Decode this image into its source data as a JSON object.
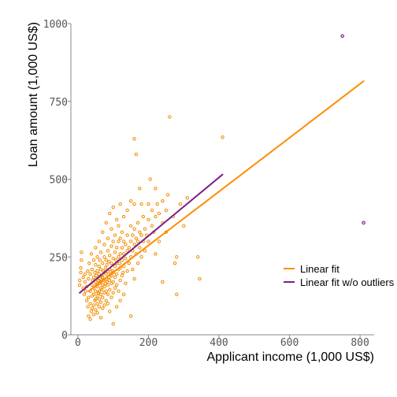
{
  "chart_data": {
    "type": "scatter",
    "title": "",
    "xlabel": "Applicant income (1,000 US$)",
    "ylabel": "Loan amount (1,000 US$)",
    "xlim": [
      -20,
      840
    ],
    "ylim": [
      0,
      1000
    ],
    "x_ticks": [
      0,
      200,
      400,
      600,
      800
    ],
    "y_ticks": [
      0,
      250,
      500,
      750,
      1000
    ],
    "grid": false,
    "legend_position": "right",
    "colors": {
      "points": "#f28c00",
      "outliers": "#7b1f8a",
      "fit": "#ff8c00",
      "fit_no_outliers": "#7b1f8a",
      "axis": "#888888"
    },
    "legend": [
      {
        "label": "Linear fit",
        "color": "#ff8c00"
      },
      {
        "label": "Linear fit w/o outliers",
        "color": "#7b1f8a"
      }
    ],
    "series": [
      {
        "name": "Linear fit",
        "kind": "line",
        "color": "#ff8c00",
        "x": [
          30,
          810
        ],
        "y": [
          140,
          815
        ]
      },
      {
        "name": "Linear fit w/o outliers",
        "kind": "line",
        "color": "#7b1f8a",
        "x": [
          5,
          410
        ],
        "y": [
          135,
          515
        ]
      }
    ],
    "outliers": [
      {
        "x": 750,
        "y": 960
      },
      {
        "x": 810,
        "y": 360
      }
    ],
    "points": [
      [
        5,
        160
      ],
      [
        5,
        175
      ],
      [
        8,
        200
      ],
      [
        8,
        215
      ],
      [
        10,
        240
      ],
      [
        10,
        265
      ],
      [
        15,
        150
      ],
      [
        15,
        185
      ],
      [
        18,
        130
      ],
      [
        20,
        170
      ],
      [
        20,
        195
      ],
      [
        22,
        140
      ],
      [
        25,
        110
      ],
      [
        25,
        155
      ],
      [
        28,
        90
      ],
      [
        28,
        205
      ],
      [
        30,
        60
      ],
      [
        30,
        120
      ],
      [
        30,
        180
      ],
      [
        32,
        230
      ],
      [
        35,
        50
      ],
      [
        35,
        100
      ],
      [
        35,
        140
      ],
      [
        35,
        195
      ],
      [
        38,
        75
      ],
      [
        38,
        260
      ],
      [
        40,
        85
      ],
      [
        40,
        125
      ],
      [
        40,
        160
      ],
      [
        40,
        210
      ],
      [
        42,
        175
      ],
      [
        45,
        65
      ],
      [
        45,
        95
      ],
      [
        45,
        130
      ],
      [
        45,
        150
      ],
      [
        45,
        185
      ],
      [
        45,
        240
      ],
      [
        48,
        110
      ],
      [
        48,
        200
      ],
      [
        50,
        80
      ],
      [
        50,
        115
      ],
      [
        50,
        140
      ],
      [
        50,
        170
      ],
      [
        50,
        225
      ],
      [
        50,
        280
      ],
      [
        52,
        160
      ],
      [
        52,
        190
      ],
      [
        55,
        70
      ],
      [
        55,
        100
      ],
      [
        55,
        125
      ],
      [
        55,
        155
      ],
      [
        55,
        205
      ],
      [
        55,
        250
      ],
      [
        58,
        135
      ],
      [
        58,
        175
      ],
      [
        60,
        90
      ],
      [
        60,
        115
      ],
      [
        60,
        140
      ],
      [
        60,
        165
      ],
      [
        60,
        195
      ],
      [
        60,
        220
      ],
      [
        60,
        300
      ],
      [
        62,
        180
      ],
      [
        62,
        240
      ],
      [
        65,
        55
      ],
      [
        65,
        105
      ],
      [
        65,
        130
      ],
      [
        65,
        150
      ],
      [
        65,
        170
      ],
      [
        65,
        210
      ],
      [
        65,
        265
      ],
      [
        68,
        145
      ],
      [
        68,
        190
      ],
      [
        70,
        85
      ],
      [
        70,
        120
      ],
      [
        70,
        160
      ],
      [
        70,
        185
      ],
      [
        70,
        230
      ],
      [
        70,
        330
      ],
      [
        72,
        175
      ],
      [
        72,
        205
      ],
      [
        75,
        95
      ],
      [
        75,
        135
      ],
      [
        75,
        155
      ],
      [
        75,
        200
      ],
      [
        75,
        250
      ],
      [
        75,
        290
      ],
      [
        78,
        165
      ],
      [
        78,
        215
      ],
      [
        80,
        110
      ],
      [
        80,
        140
      ],
      [
        80,
        180
      ],
      [
        80,
        195
      ],
      [
        80,
        240
      ],
      [
        80,
        360
      ],
      [
        82,
        170
      ],
      [
        82,
        225
      ],
      [
        85,
        100
      ],
      [
        85,
        130
      ],
      [
        85,
        160
      ],
      [
        85,
        205
      ],
      [
        85,
        270
      ],
      [
        85,
        310
      ],
      [
        88,
        185
      ],
      [
        88,
        235
      ],
      [
        90,
        75
      ],
      [
        90,
        145
      ],
      [
        90,
        175
      ],
      [
        90,
        210
      ],
      [
        90,
        255
      ],
      [
        90,
        390
      ],
      [
        92,
        195
      ],
      [
        95,
        120
      ],
      [
        95,
        165
      ],
      [
        95,
        190
      ],
      [
        95,
        230
      ],
      [
        95,
        285
      ],
      [
        95,
        340
      ],
      [
        98,
        205
      ],
      [
        100,
        35
      ],
      [
        100,
        135
      ],
      [
        100,
        170
      ],
      [
        100,
        200
      ],
      [
        100,
        245
      ],
      [
        100,
        300
      ],
      [
        100,
        410
      ],
      [
        105,
        150
      ],
      [
        105,
        185
      ],
      [
        105,
        220
      ],
      [
        105,
        265
      ],
      [
        105,
        320
      ],
      [
        108,
        240
      ],
      [
        110,
        90
      ],
      [
        110,
        160
      ],
      [
        110,
        195
      ],
      [
        110,
        230
      ],
      [
        110,
        280
      ],
      [
        110,
        370
      ],
      [
        115,
        140
      ],
      [
        115,
        210
      ],
      [
        115,
        250
      ],
      [
        115,
        300
      ],
      [
        115,
        350
      ],
      [
        118,
        230
      ],
      [
        120,
        110
      ],
      [
        120,
        175
      ],
      [
        120,
        215
      ],
      [
        120,
        260
      ],
      [
        120,
        310
      ],
      [
        120,
        420
      ],
      [
        125,
        190
      ],
      [
        125,
        240
      ],
      [
        125,
        280
      ],
      [
        125,
        330
      ],
      [
        128,
        200
      ],
      [
        130,
        130
      ],
      [
        130,
        220
      ],
      [
        130,
        260
      ],
      [
        130,
        300
      ],
      [
        130,
        380
      ],
      [
        135,
        165
      ],
      [
        135,
        245
      ],
      [
        135,
        290
      ],
      [
        140,
        205
      ],
      [
        140,
        270
      ],
      [
        140,
        320
      ],
      [
        140,
        400
      ],
      [
        145,
        230
      ],
      [
        145,
        280
      ],
      [
        150,
        60
      ],
      [
        150,
        250
      ],
      [
        150,
        300
      ],
      [
        150,
        350
      ],
      [
        150,
        430
      ],
      [
        155,
        210
      ],
      [
        155,
        270
      ],
      [
        155,
        320
      ],
      [
        160,
        180
      ],
      [
        160,
        290
      ],
      [
        160,
        340
      ],
      [
        160,
        420
      ],
      [
        160,
        630
      ],
      [
        165,
        260
      ],
      [
        165,
        310
      ],
      [
        165,
        580
      ],
      [
        170,
        230
      ],
      [
        170,
        300
      ],
      [
        170,
        360
      ],
      [
        175,
        280
      ],
      [
        175,
        330
      ],
      [
        175,
        470
      ],
      [
        180,
        250
      ],
      [
        180,
        320
      ],
      [
        180,
        420
      ],
      [
        185,
        300
      ],
      [
        185,
        380
      ],
      [
        190,
        270
      ],
      [
        190,
        340
      ],
      [
        195,
        320
      ],
      [
        200,
        300
      ],
      [
        200,
        370
      ],
      [
        200,
        420
      ],
      [
        205,
        500
      ],
      [
        210,
        350
      ],
      [
        210,
        400
      ],
      [
        215,
        330
      ],
      [
        220,
        260
      ],
      [
        220,
        380
      ],
      [
        220,
        470
      ],
      [
        225,
        420
      ],
      [
        230,
        300
      ],
      [
        230,
        390
      ],
      [
        240,
        170
      ],
      [
        240,
        360
      ],
      [
        240,
        430
      ],
      [
        250,
        330
      ],
      [
        250,
        400
      ],
      [
        255,
        450
      ],
      [
        260,
        700
      ],
      [
        270,
        380
      ],
      [
        275,
        230
      ],
      [
        280,
        250
      ],
      [
        280,
        130
      ],
      [
        290,
        420
      ],
      [
        300,
        350
      ],
      [
        310,
        440
      ],
      [
        340,
        250
      ],
      [
        345,
        180
      ],
      [
        410,
        635
      ]
    ]
  }
}
